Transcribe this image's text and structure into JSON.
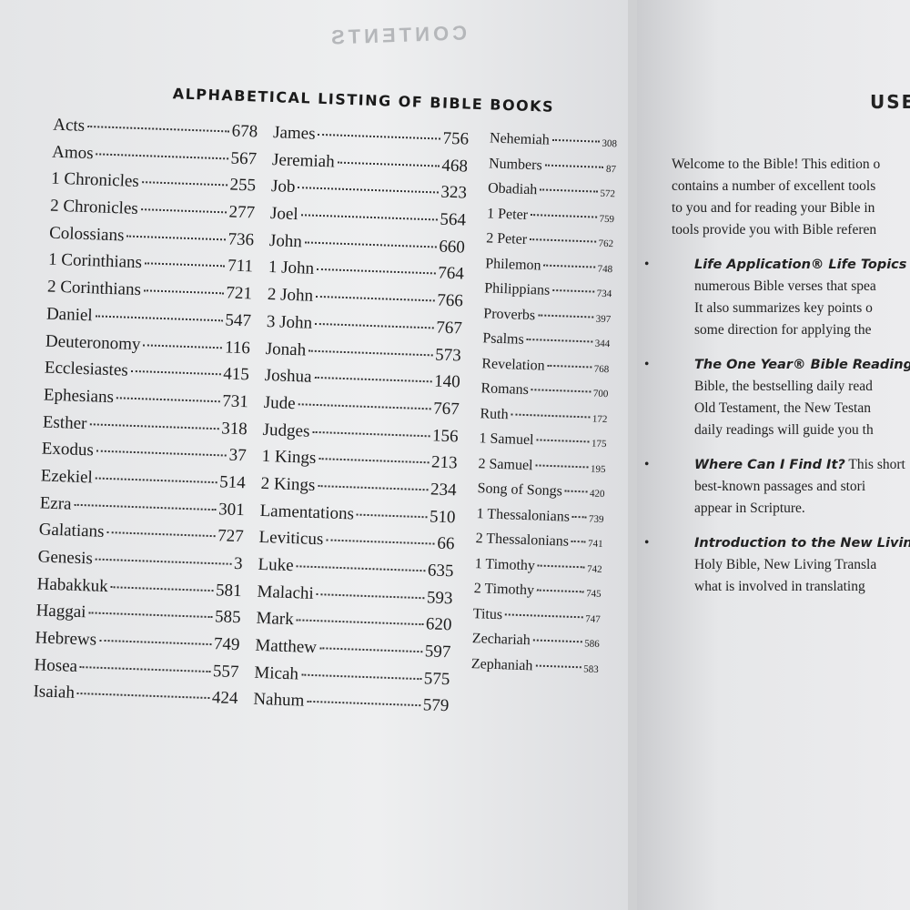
{
  "left_page": {
    "header": "CONTENTS",
    "title": "ALPHABETICAL LISTING OF BIBLE BOOKS",
    "columns": [
      [
        [
          "Acts",
          678
        ],
        [
          "Amos",
          567
        ],
        [
          "1 Chronicles",
          255
        ],
        [
          "2 Chronicles",
          277
        ],
        [
          "Colossians",
          736
        ],
        [
          "1 Corinthians",
          711
        ],
        [
          "2 Corinthians",
          721
        ],
        [
          "Daniel",
          547
        ],
        [
          "Deuteronomy",
          116
        ],
        [
          "Ecclesiastes",
          415
        ],
        [
          "Ephesians",
          731
        ],
        [
          "Esther",
          318
        ],
        [
          "Exodus",
          37
        ],
        [
          "Ezekiel",
          514
        ],
        [
          "Ezra",
          301
        ],
        [
          "Galatians",
          727
        ],
        [
          "Genesis",
          3
        ],
        [
          "Habakkuk",
          581
        ],
        [
          "Haggai",
          585
        ],
        [
          "Hebrews",
          749
        ],
        [
          "Hosea",
          557
        ],
        [
          "Isaiah",
          424
        ]
      ],
      [
        [
          "James",
          756
        ],
        [
          "Jeremiah",
          468
        ],
        [
          "Job",
          323
        ],
        [
          "Joel",
          564
        ],
        [
          "John",
          660
        ],
        [
          "1 John",
          764
        ],
        [
          "2 John",
          766
        ],
        [
          "3 John",
          767
        ],
        [
          "Jonah",
          573
        ],
        [
          "Joshua",
          140
        ],
        [
          "Jude",
          767
        ],
        [
          "Judges",
          156
        ],
        [
          "1 Kings",
          213
        ],
        [
          "2 Kings",
          234
        ],
        [
          "Lamentations",
          510
        ],
        [
          "Leviticus",
          66
        ],
        [
          "Luke",
          635
        ],
        [
          "Malachi",
          593
        ],
        [
          "Mark",
          620
        ],
        [
          "Matthew",
          597
        ],
        [
          "Micah",
          575
        ],
        [
          "Nahum",
          579
        ]
      ],
      [
        [
          "Nehemiah",
          308
        ],
        [
          "Numbers",
          87
        ],
        [
          "Obadiah",
          572
        ],
        [
          "1 Peter",
          759
        ],
        [
          "2 Peter",
          762
        ],
        [
          "Philemon",
          748
        ],
        [
          "Philippians",
          734
        ],
        [
          "Proverbs",
          397
        ],
        [
          "Psalms",
          344
        ],
        [
          "Revelation",
          768
        ],
        [
          "Romans",
          700
        ],
        [
          "Ruth",
          172
        ],
        [
          "1 Samuel",
          175
        ],
        [
          "2 Samuel",
          195
        ],
        [
          "Song of Songs",
          420
        ],
        [
          "1 Thessalonians",
          739
        ],
        [
          "2 Thessalonians",
          741
        ],
        [
          "1 Timothy",
          742
        ],
        [
          "2 Timothy",
          745
        ],
        [
          "Titus",
          747
        ],
        [
          "Zechariah",
          586
        ],
        [
          "Zephaniah",
          583
        ]
      ]
    ]
  },
  "right_page": {
    "title": "USE",
    "intro": [
      "Welcome to the Bible! This edition o",
      "contains a number of excellent tools",
      "to you and for reading your Bible in",
      "tools provide you with Bible referen"
    ],
    "bullets": [
      {
        "lead": "Life Application® Life Topics Ind",
        "text": "",
        "lines": [
          "numerous Bible verses that spea",
          "It also summarizes key points o",
          "some direction for applying the"
        ]
      },
      {
        "lead": "The One Year® Bible Reading P",
        "text": "",
        "lines": [
          "Bible, the bestselling daily read",
          "Old Testament, the New Testan",
          "daily readings will guide you th"
        ]
      },
      {
        "lead": "Where Can I Find It?",
        "text": " This short",
        "lines": [
          "best-known passages and stori",
          "appear in Scripture."
        ]
      },
      {
        "lead": "Introduction to the New Living",
        "text": "",
        "lines": [
          "Holy Bible, New Living Transla",
          "what is involved in translating"
        ]
      }
    ]
  }
}
